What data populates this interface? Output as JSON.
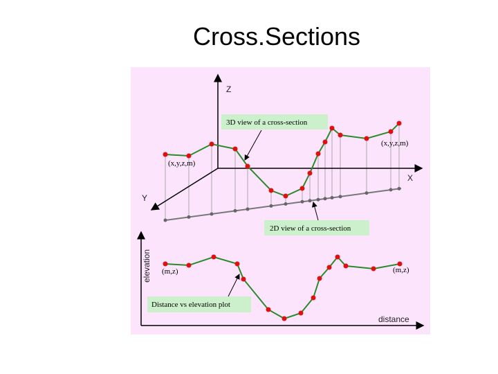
{
  "header": {
    "title": "Cross.Sections"
  },
  "diagram": {
    "axis_z": "Z",
    "axis_x": "X",
    "axis_y": "Y",
    "label_3d": "3D view of a cross-section",
    "point_label_3d_left": "(x,y,z,m)",
    "point_label_3d_right": "(x,y,z,m)",
    "label_2d": "2D view of a cross-section",
    "axis_elevation": "elevation",
    "axis_distance": "distance",
    "point_label_plot_left": "(m,z)",
    "point_label_plot_right": "(m,z)",
    "label_plot": "Distance vs elevation plot"
  }
}
